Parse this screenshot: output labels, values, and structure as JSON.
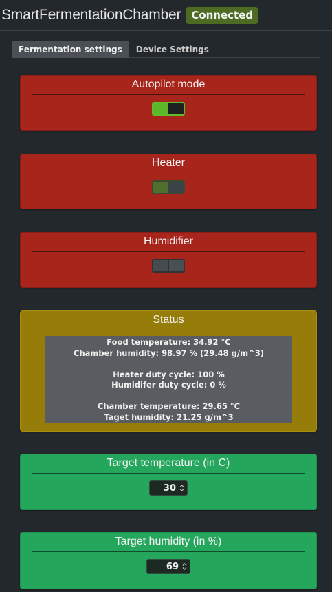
{
  "header": {
    "app_title": "SmartFermentationChamber",
    "connection_status": "Connected"
  },
  "tabs": [
    {
      "label": "Fermentation settings",
      "active": true
    },
    {
      "label": "Device Settings",
      "active": false
    }
  ],
  "autopilot": {
    "title": "Autopilot mode",
    "state": "on"
  },
  "heater": {
    "title": "Heater",
    "state": "on-disabled"
  },
  "humidifier": {
    "title": "Humidifier",
    "state": "off-disabled"
  },
  "status": {
    "title": "Status",
    "lines": {
      "food_temperature": "Food temperature: 34.92 °C",
      "chamber_humidity": "Chamber humidity: 98.97 % (29.48 g/m^3)",
      "heater_duty": "Heater duty cycle: 100 %",
      "humidifier_duty": "Humidifer duty cycle: 0 %",
      "chamber_temperature": "Chamber temperature: 29.65 °C",
      "target_humidity": "Taget humidity: 21.25 g/m^3"
    }
  },
  "target_temperature": {
    "title": "Target temperature (in C)",
    "value": "30"
  },
  "target_humidity": {
    "title": "Target humidity (in %)",
    "value": "69"
  },
  "colors": {
    "background": "#23282c",
    "danger": "#a8251c",
    "warning": "#967c08",
    "success": "#24a65d",
    "badge": "#4e6b24"
  }
}
